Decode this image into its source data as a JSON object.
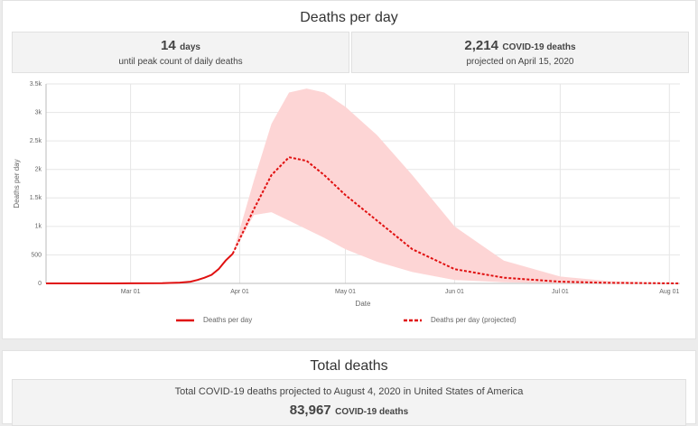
{
  "header": {
    "title": "Deaths per day"
  },
  "stats": [
    {
      "value": "14",
      "unit": "days",
      "caption": "until peak count of daily deaths"
    },
    {
      "value": "2,214",
      "unit": "COVID-19 deaths",
      "caption": "projected on April 15, 2020"
    }
  ],
  "chart_data": {
    "type": "line",
    "y_label": "Deaths per day",
    "x_label": "Date",
    "x": [
      "Feb 06",
      "Feb 20",
      "Mar 01",
      "Mar 10",
      "Mar 15",
      "Mar 18",
      "Mar 20",
      "Mar 22",
      "Mar 24",
      "Mar 26",
      "Mar 28",
      "Mar 30",
      "Apr 05",
      "Apr 10",
      "Apr 15",
      "Apr 20",
      "Apr 25",
      "May 01",
      "May 10",
      "May 20",
      "Jun 01",
      "Jun 15",
      "Jul 01",
      "Jul 15",
      "Aug 04"
    ],
    "xlim": [
      "Feb 06",
      "Aug 04"
    ],
    "xticks": [
      "Mar 01",
      "Apr 01",
      "May 01",
      "Jun 01",
      "Jul 01",
      "Aug 01"
    ],
    "ylim": [
      0,
      3500
    ],
    "yticks": [
      0,
      500,
      {
        "value": 1000,
        "label": "1k"
      },
      {
        "value": 1500,
        "label": "1.5k"
      },
      {
        "value": 2000,
        "label": "2k"
      },
      {
        "value": 2500,
        "label": "2.5k"
      },
      {
        "value": 3000,
        "label": "3k"
      },
      {
        "value": 3500,
        "label": "3.5k"
      }
    ],
    "grid": true,
    "series": [
      {
        "name": "Deaths per day",
        "color": "#e01010",
        "dashed": false,
        "values": [
          0,
          0,
          1,
          5,
          15,
          30,
          60,
          100,
          150,
          250,
          400,
          520,
          null,
          null,
          null,
          null,
          null,
          null,
          null,
          null,
          null,
          null,
          null,
          null,
          null
        ]
      },
      {
        "name": "Deaths per day (projected)",
        "color": "#e01010",
        "dashed": true,
        "values": [
          null,
          null,
          null,
          null,
          null,
          null,
          null,
          null,
          null,
          null,
          null,
          520,
          1300,
          1900,
          2214,
          2150,
          1900,
          1550,
          1100,
          600,
          250,
          100,
          30,
          10,
          0
        ]
      }
    ],
    "band": {
      "color": "#fdd5d5",
      "upper": [
        null,
        null,
        null,
        null,
        null,
        null,
        null,
        null,
        null,
        null,
        null,
        520,
        1800,
        2800,
        3350,
        3420,
        3350,
        3100,
        2600,
        1900,
        1000,
        400,
        120,
        40,
        5
      ],
      "lower": [
        null,
        null,
        null,
        null,
        null,
        null,
        null,
        null,
        null,
        null,
        null,
        520,
        1200,
        1250,
        1100,
        950,
        800,
        600,
        380,
        200,
        60,
        20,
        5,
        0,
        0
      ]
    },
    "legend": "bottom"
  },
  "total": {
    "title": "Total deaths",
    "caption": "Total COVID-19 deaths projected to August 4, 2020 in United States of America",
    "value": "83,967",
    "unit": "COVID-19 deaths"
  }
}
